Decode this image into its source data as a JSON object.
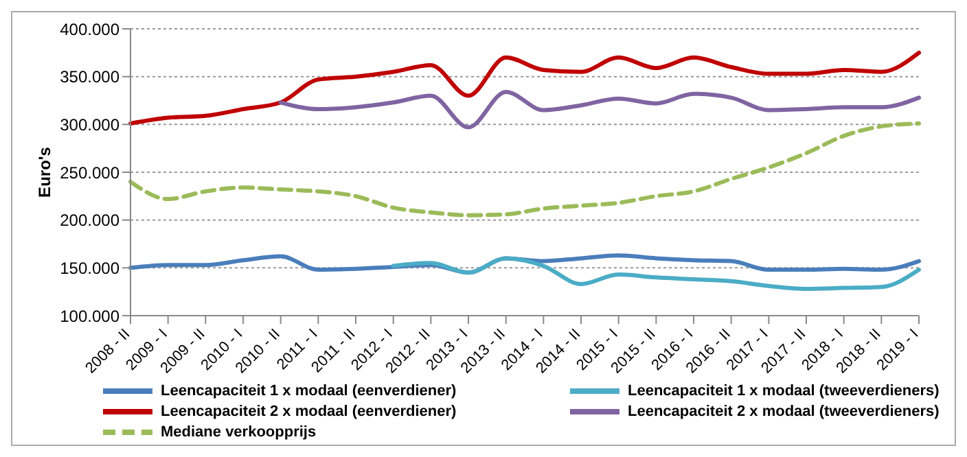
{
  "chart_data": {
    "type": "line",
    "ylabel": "Euro's",
    "categories": [
      "2008 - II",
      "2009 - I",
      "2009 - II",
      "2010 - I",
      "2010 - II",
      "2011 - I",
      "2011 - II",
      "2012 - I",
      "2012 - II",
      "2013 - I",
      "2013 - II",
      "2014 - I",
      "2014 - II",
      "2015 - I",
      "2015 - II",
      "2016 - I",
      "2016 - II",
      "2017 - I",
      "2017 - II",
      "2018 - I",
      "2018 - II",
      "2019 - I"
    ],
    "series": [
      {
        "name": "Leencapaciteit 1 x modaal (eenverdiener)",
        "color": "#4a7ebb",
        "values": [
          150000,
          153000,
          153000,
          158000,
          162000,
          148000,
          149000,
          151000,
          153000,
          145000,
          160000,
          157000,
          160000,
          163000,
          160000,
          158000,
          157000,
          148000,
          148000,
          149000,
          148000,
          157000
        ]
      },
      {
        "name": "Leencapaciteit 1 x modaal (tweeverdieners)",
        "color": "#4bacc6",
        "values": [
          null,
          null,
          null,
          null,
          null,
          null,
          null,
          152000,
          155000,
          145000,
          160000,
          152000,
          133000,
          143000,
          140000,
          138000,
          136000,
          131000,
          128000,
          129000,
          130000,
          148000
        ]
      },
      {
        "name": "Leencapaciteit 2 x modaal (eenverdiener)",
        "color": "#c00000",
        "values": [
          301000,
          307000,
          309000,
          316000,
          323000,
          347000,
          350000,
          355000,
          362000,
          330000,
          370000,
          357000,
          355000,
          370000,
          359000,
          370000,
          360000,
          353000,
          353000,
          357000,
          355000,
          375000
        ]
      },
      {
        "name": "Leencapaciteit 2 x modaal (tweeverdieners)",
        "color": "#8064a2",
        "values": [
          null,
          null,
          null,
          null,
          323000,
          316000,
          318000,
          323000,
          330000,
          297000,
          334000,
          315000,
          320000,
          327000,
          322000,
          332000,
          328000,
          315000,
          316000,
          318000,
          318000,
          328000
        ]
      },
      {
        "name": "Mediane verkoopprijs",
        "color": "#9bbb59",
        "line_style": "dashed",
        "values": [
          240000,
          222000,
          230000,
          234000,
          232000,
          230000,
          225000,
          213000,
          208000,
          205000,
          206000,
          212000,
          215000,
          218000,
          225000,
          230000,
          243000,
          255000,
          270000,
          288000,
          298000,
          301000
        ]
      }
    ],
    "ylim": [
      100000,
      400000
    ],
    "yticks": [
      {
        "value": 100000,
        "label": "100.000"
      },
      {
        "value": 150000,
        "label": "150.000"
      },
      {
        "value": 200000,
        "label": "200.000"
      },
      {
        "value": 250000,
        "label": "250.000"
      },
      {
        "value": 300000,
        "label": "300.000"
      },
      {
        "value": 350000,
        "label": "350.000"
      },
      {
        "value": 400000,
        "label": "400.000"
      }
    ],
    "grid": "y",
    "legend": "bottom",
    "marker": "none",
    "line_style": "solid"
  }
}
